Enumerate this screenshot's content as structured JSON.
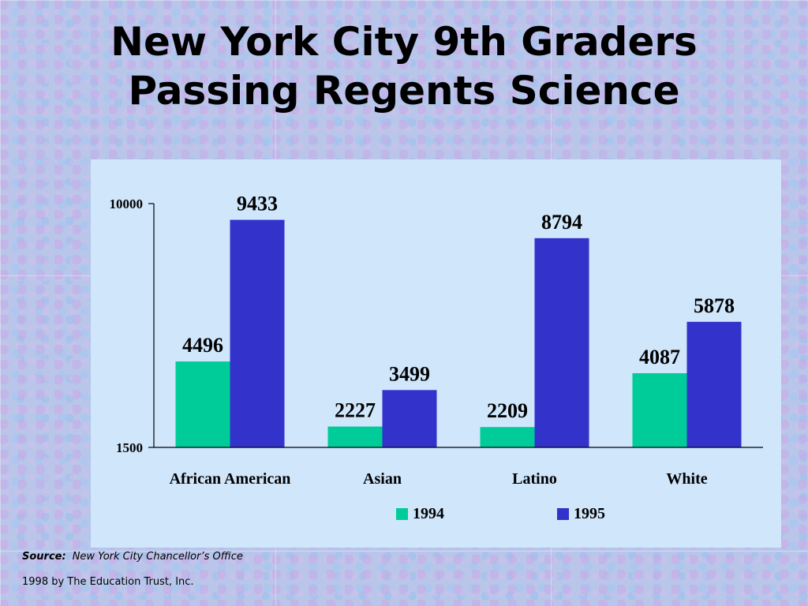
{
  "title": {
    "line1": "New York City 9th Graders",
    "line2": "Passing Regents Science"
  },
  "chart_data": {
    "type": "bar",
    "categories": [
      "African American",
      "Asian",
      "Latino",
      "White"
    ],
    "series": [
      {
        "name": "1994",
        "color": "#00cc99",
        "values": [
          4496,
          2227,
          2209,
          4087
        ]
      },
      {
        "name": "1995",
        "color": "#3333cc",
        "values": [
          9433,
          3499,
          8794,
          5878
        ]
      }
    ],
    "ylim": [
      1500,
      10000
    ],
    "yticks": [
      1500,
      10000
    ],
    "ytick_labels": [
      "1500",
      "10000"
    ],
    "legend_position": "bottom",
    "grid": false
  },
  "footer": {
    "source_label": "Source:",
    "source_value": "New York City Chancellor’s Office",
    "copyright": "1998 by The Education Trust, Inc."
  }
}
